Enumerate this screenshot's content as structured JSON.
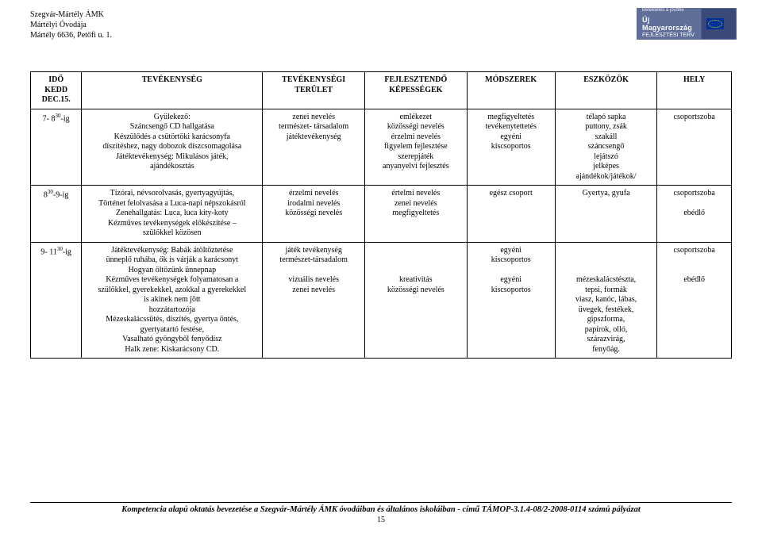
{
  "header": {
    "line1": "Szegvár-Mártély ÁMK",
    "line2": "Mártélyi Óvodája",
    "line3": "Mártély 6636, Petőfi u. 1."
  },
  "logo": {
    "tagline": "Befektetés a jövőbe",
    "brand1": "Új Magyarország",
    "brand2": "FEJLESZTÉSI TERV"
  },
  "table": {
    "head": {
      "ido_l1": "IDŐ",
      "ido_l2": "KEDD",
      "ido_l3": "DEC.15.",
      "tevekenyseg": "TEVÉKENYSÉG",
      "terulet_l1": "TEVÉKENYSÉGI",
      "terulet_l2": "TERÜLET",
      "kepessegek_l1": "FEJLESZTENDŐ",
      "kepessegek_l2": "KÉPESSÉGEK",
      "modszerek": "MÓDSZEREK",
      "eszkozok": "ESZKÖZÖK",
      "hely": "HELY"
    },
    "rows": [
      {
        "ido_prefix": "7- 8",
        "ido_sup": "30",
        "ido_suffix": "-ig",
        "tevekenyseg": "Gyülekező:\nSzáncsengő CD hallgatása\nKészülődés a csütörtöki karácsonyfa\ndíszítéshez, nagy dobozok díszcsomagolása\nJátéktevékenység: Mikulásos játék,\najándékosztás",
        "terulet": "zenei nevelés\ntermészet- társadalom\njátéktevékenység",
        "kepessegek": "emlékezet\nközösségi nevelés\nérzelmi nevelés\nfigyelem fejlesztése\nszerepjáték\nanyanyelvi fejlesztés",
        "modszerek": "megfigyeltetés\ntevékenytettetés\negyéni\nkiscsoportos",
        "eszkozok": "télapó sapka\nputtony, zsák\nszakáll\nszáncsengő\nlejátszó\njelképes\najándékok/játékok/",
        "hely": "csoportszoba"
      },
      {
        "ido_prefix": "8",
        "ido_sup": "30",
        "ido_suffix": "-9-ig",
        "tevekenyseg": "Tízórai, névsorolvasás, gyertyagyújtás,\nTörténet felolvasása a Luca-napi népszokásról\nZenehallgatás: Luca, luca kity-koty\nKézműves tevékenységek előkészítése –\nszülőkkel közösen",
        "terulet": "érzelmi nevelés\nirodalmi nevelés\nközösségi nevelés",
        "kepessegek": "értelmi nevelés\nzenei nevelés\nmegfigyeltetés",
        "modszerek": "egész csoport",
        "eszkozok": "Gyertya, gyufa",
        "hely": "csoportszoba\n\nebédlő"
      },
      {
        "ido_prefix": "9- 11",
        "ido_sup": "30",
        "ido_suffix": "-ig",
        "tevekenyseg": "Játéktevékenység: Babák átöltöztetése\nünneplő ruhába, ők is várják a karácsonyt\nHogyan öltözünk ünnepnap\nKézműves tevékenységek folyamatosan a\nszülőkkel, gyerekekkel, azokkal a gyerekekkel\nis akinek nem jött\nhozzátartozója\nMézeskalácssütés, díszítés, gyertya öntés,\ngyertyatartó festése,\nVasalható gyöngyből fenyődísz\nHalk zene: Kiskarácsony CD.",
        "terulet": "játék tevékenység\ntermészet-társadalom\n\nvizuális nevelés\nzenei nevelés",
        "kepessegek": "\n\n\nkreativitás\nközösségi nevelés",
        "modszerek": "egyéni\nkiscsoportos\n\negyéni\nkiscsoportos",
        "eszkozok": "\n\n\nmézeskalácstészta,\ntepsi, formák\nviasz, kanóc, lábas,\nüvegek, festékek,\ngipszforma,\npapírok, olló,\nszárazvirág,\nfenyőág.",
        "hely": "csoportszoba\n\n\nebédlő"
      }
    ]
  },
  "footer": {
    "text": "Kompetencia alapú oktatás bevezetése a Szegvár-Mártély ÁMK óvodáiban és általános iskoláiban - című TÁMOP-3.1.4-08/2-2008-0114 számú pályázat",
    "page": "15"
  }
}
